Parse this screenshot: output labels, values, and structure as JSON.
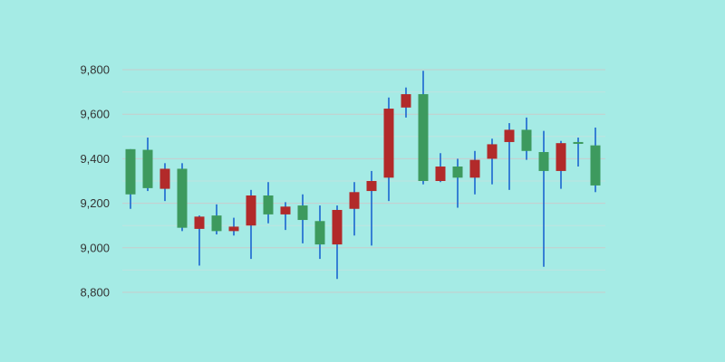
{
  "chart_data": {
    "type": "candlestick",
    "title": "",
    "xlabel": "",
    "ylabel": "",
    "ylim": [
      8800,
      9800
    ],
    "y_ticks": [
      {
        "value": 9800,
        "label": "9,800"
      },
      {
        "value": 9600,
        "label": "9,600"
      },
      {
        "value": 9400,
        "label": "9,400"
      },
      {
        "value": 9200,
        "label": "9,200"
      },
      {
        "value": 9000,
        "label": "9,000"
      },
      {
        "value": 8800,
        "label": "8,800"
      }
    ],
    "grid": true,
    "colors": {
      "background": "#a5ebe5",
      "up": "#3d9a5e",
      "down": "#b22a2a",
      "wick": "#1a66d0"
    },
    "candles": [
      {
        "open": 9240,
        "close": 9443,
        "high": 9443,
        "low": 9175
      },
      {
        "open": 9268,
        "close": 9440,
        "high": 9495,
        "low": 9255
      },
      {
        "open": 9355,
        "close": 9265,
        "high": 9380,
        "low": 9210
      },
      {
        "open": 9090,
        "close": 9355,
        "high": 9380,
        "low": 9075
      },
      {
        "open": 9140,
        "close": 9085,
        "high": 9145,
        "low": 8920
      },
      {
        "open": 9075,
        "close": 9145,
        "high": 9195,
        "low": 9060
      },
      {
        "open": 9095,
        "close": 9075,
        "high": 9135,
        "low": 9055
      },
      {
        "open": 9235,
        "close": 9100,
        "high": 9260,
        "low": 8950
      },
      {
        "open": 9150,
        "close": 9235,
        "high": 9295,
        "low": 9110
      },
      {
        "open": 9185,
        "close": 9150,
        "high": 9205,
        "low": 9080
      },
      {
        "open": 9125,
        "close": 9190,
        "high": 9240,
        "low": 9020
      },
      {
        "open": 9015,
        "close": 9120,
        "high": 9190,
        "low": 8950
      },
      {
        "open": 9170,
        "close": 9015,
        "high": 9190,
        "low": 8860
      },
      {
        "open": 9250,
        "close": 9175,
        "high": 9295,
        "low": 9055
      },
      {
        "open": 9300,
        "close": 9255,
        "high": 9345,
        "low": 9010
      },
      {
        "open": 9625,
        "close": 9315,
        "high": 9675,
        "low": 9210
      },
      {
        "open": 9690,
        "close": 9630,
        "high": 9720,
        "low": 9585
      },
      {
        "open": 9300,
        "close": 9690,
        "high": 9795,
        "low": 9285
      },
      {
        "open": 9365,
        "close": 9300,
        "high": 9425,
        "low": 9295
      },
      {
        "open": 9315,
        "close": 9365,
        "high": 9400,
        "low": 9180
      },
      {
        "open": 9395,
        "close": 9315,
        "high": 9435,
        "low": 9240
      },
      {
        "open": 9465,
        "close": 9400,
        "high": 9490,
        "low": 9285
      },
      {
        "open": 9530,
        "close": 9475,
        "high": 9560,
        "low": 9260
      },
      {
        "open": 9435,
        "close": 9530,
        "high": 9585,
        "low": 9395
      },
      {
        "open": 9345,
        "close": 9430,
        "high": 9525,
        "low": 8915
      },
      {
        "open": 9470,
        "close": 9345,
        "high": 9480,
        "low": 9265
      },
      {
        "open": 9470,
        "close": 9475,
        "high": 9495,
        "low": 9365
      },
      {
        "open": 9280,
        "close": 9460,
        "high": 9540,
        "low": 9250
      }
    ]
  }
}
